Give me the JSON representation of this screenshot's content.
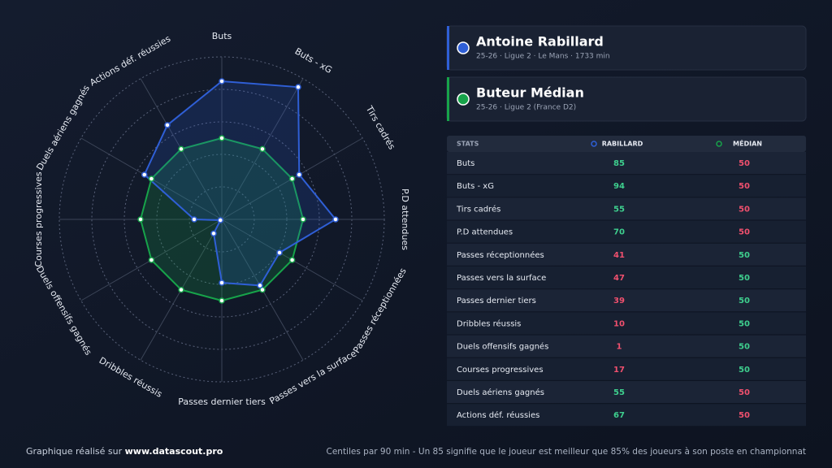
{
  "chart_data": {
    "type": "radar",
    "categories": [
      "Buts",
      "Buts - xG",
      "Tirs cadrés",
      "P.D attendues",
      "Passes réceptionnées",
      "Passes vers la surface",
      "Passes dernier tiers",
      "Dribbles réussis",
      "Duels offensifs gagnés",
      "Courses progressives",
      "Duels aériens gagnés",
      "Actions déf. réussies"
    ],
    "series": [
      {
        "name": "Antoine Rabillard",
        "color": "#2f5fd6",
        "values": [
          85,
          94,
          55,
          70,
          41,
          47,
          39,
          10,
          1,
          17,
          55,
          67
        ]
      },
      {
        "name": "Buteur Médian",
        "color": "#17a34a",
        "values": [
          50,
          50,
          50,
          50,
          50,
          50,
          50,
          50,
          50,
          50,
          50,
          50
        ]
      }
    ],
    "rlim": [
      0,
      100
    ],
    "rticks": [
      20,
      40,
      60,
      80,
      100
    ]
  },
  "players": [
    {
      "subtitle": "25-26 · Ligue 2 · Le Mans · 1733 min"
    },
    {
      "subtitle": "25-26 · Ligue 2 (France D2)"
    }
  ],
  "table": {
    "headers": [
      "STATS",
      "RABILLARD",
      "MÉDIAN"
    ]
  },
  "footer": {
    "left": "Graphique réalisé sur",
    "link": "www.datascout.pro",
    "right": "Centiles par 90 min - Un 85 signifie que le joueur est meilleur que 85% des joueurs à son poste en championnat"
  }
}
